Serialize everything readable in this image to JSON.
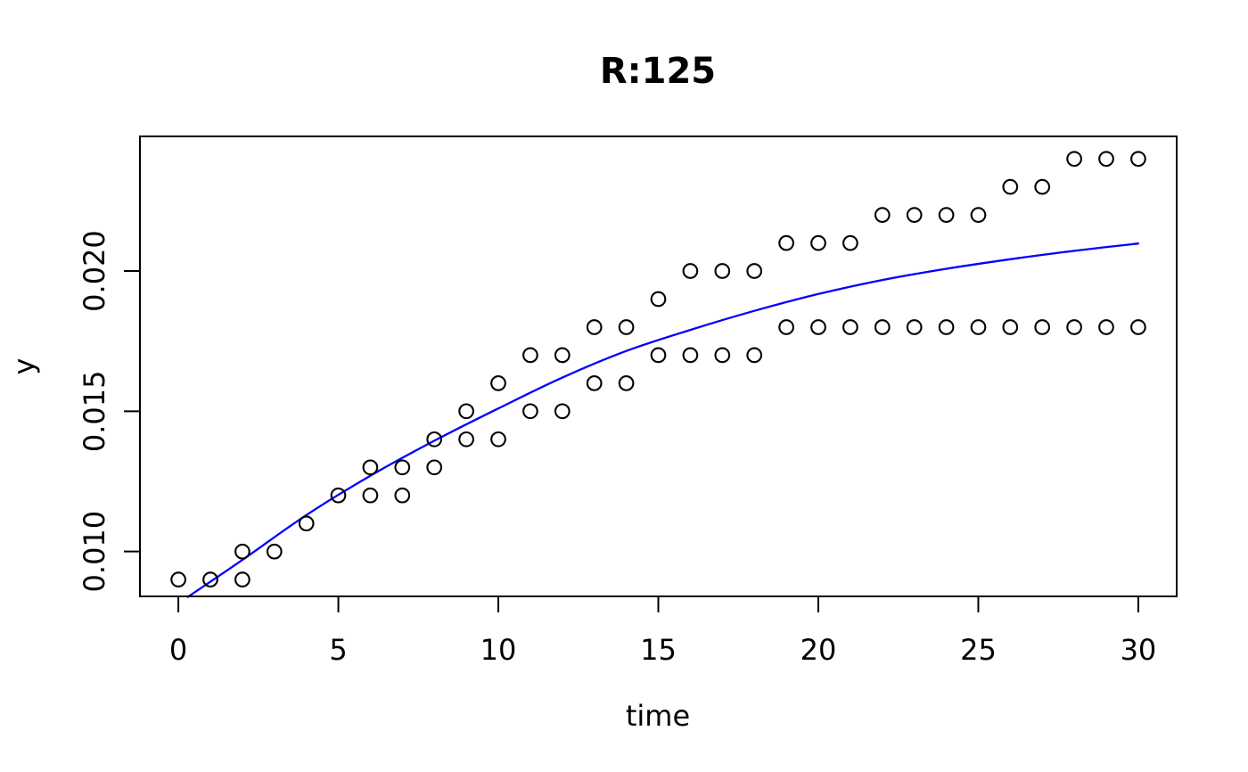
{
  "title": "R:125",
  "axes": {
    "xlabel": "time",
    "ylabel": "y",
    "x_tick_labels": [
      "0",
      "5",
      "10",
      "15",
      "20",
      "25",
      "30"
    ],
    "y_tick_labels": [
      "0.010",
      "0.015",
      "0.020"
    ]
  },
  "colors": {
    "points": "#000000",
    "curve": "#0000ff",
    "axis": "#000000",
    "background": "#ffffff"
  },
  "chart_data": {
    "type": "scatter",
    "title": "R:125",
    "xlabel": "time",
    "ylabel": "y",
    "xlim": [
      -1.2,
      31.2
    ],
    "ylim": [
      0.0084,
      0.0248
    ],
    "grid": false,
    "legend": "none",
    "x_ticks": [
      0,
      5,
      10,
      15,
      20,
      25,
      30
    ],
    "y_ticks": [
      0.01,
      0.015,
      0.02
    ],
    "points": [
      [
        0,
        0.009
      ],
      [
        1,
        0.009
      ],
      [
        2,
        0.009
      ],
      [
        2,
        0.01
      ],
      [
        3,
        0.01
      ],
      [
        4,
        0.011
      ],
      [
        5,
        0.012
      ],
      [
        6,
        0.012
      ],
      [
        6,
        0.013
      ],
      [
        7,
        0.012
      ],
      [
        7,
        0.013
      ],
      [
        8,
        0.013
      ],
      [
        8,
        0.014
      ],
      [
        9,
        0.014
      ],
      [
        9,
        0.015
      ],
      [
        10,
        0.014
      ],
      [
        10,
        0.016
      ],
      [
        11,
        0.015
      ],
      [
        11,
        0.017
      ],
      [
        12,
        0.015
      ],
      [
        12,
        0.017
      ],
      [
        13,
        0.016
      ],
      [
        13,
        0.018
      ],
      [
        14,
        0.016
      ],
      [
        14,
        0.018
      ],
      [
        15,
        0.017
      ],
      [
        15,
        0.019
      ],
      [
        16,
        0.017
      ],
      [
        16,
        0.02
      ],
      [
        17,
        0.017
      ],
      [
        17,
        0.02
      ],
      [
        18,
        0.017
      ],
      [
        18,
        0.02
      ],
      [
        19,
        0.018
      ],
      [
        19,
        0.021
      ],
      [
        20,
        0.018
      ],
      [
        20,
        0.021
      ],
      [
        21,
        0.018
      ],
      [
        21,
        0.021
      ],
      [
        22,
        0.018
      ],
      [
        22,
        0.022
      ],
      [
        23,
        0.018
      ],
      [
        23,
        0.022
      ],
      [
        24,
        0.018
      ],
      [
        24,
        0.022
      ],
      [
        25,
        0.018
      ],
      [
        25,
        0.022
      ],
      [
        26,
        0.018
      ],
      [
        26,
        0.023
      ],
      [
        27,
        0.018
      ],
      [
        27,
        0.023
      ],
      [
        28,
        0.018
      ],
      [
        28,
        0.024
      ],
      [
        29,
        0.018
      ],
      [
        29,
        0.024
      ],
      [
        30,
        0.018
      ],
      [
        30,
        0.024
      ]
    ],
    "fit_curve": {
      "name": "model-fit-line",
      "color": "#0000ff",
      "points": [
        [
          0.3,
          0.00838
        ],
        [
          2,
          0.0097
        ],
        [
          4,
          0.0113
        ],
        [
          6,
          0.0127
        ],
        [
          8,
          0.01395
        ],
        [
          10,
          0.0151
        ],
        [
          12,
          0.0162
        ],
        [
          14,
          0.01715
        ],
        [
          16,
          0.0179
        ],
        [
          18,
          0.01858
        ],
        [
          20,
          0.01918
        ],
        [
          22,
          0.01968
        ],
        [
          24,
          0.02008
        ],
        [
          26,
          0.02042
        ],
        [
          28,
          0.02072
        ],
        [
          30,
          0.02098
        ]
      ]
    }
  }
}
